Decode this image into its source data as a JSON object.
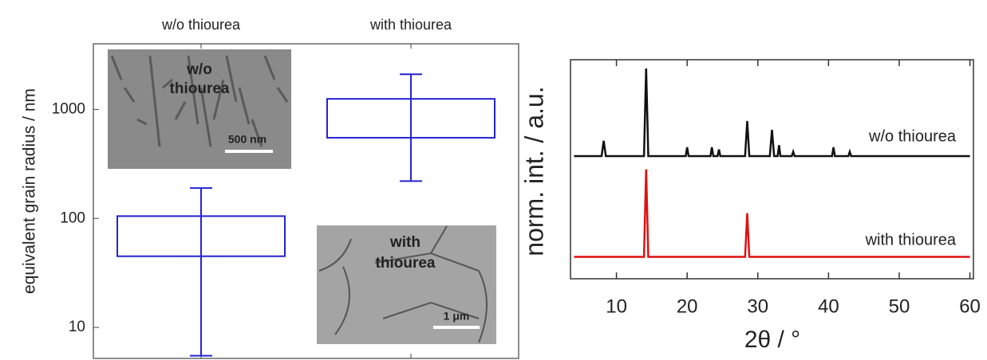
{
  "chart_data": [
    {
      "type": "box",
      "ylabel": "equivalent grain radius / nm",
      "log_scale": true,
      "categories": [
        "w/o thiourea",
        "with thiourea"
      ],
      "ylim": [
        5.2,
        4000
      ],
      "yticks": [
        10,
        100,
        1000
      ],
      "color": "#2424d0",
      "boxes": [
        {
          "q1": 45,
          "q3": 105,
          "whislo": 5.5,
          "whishi": 190
        },
        {
          "q1": 550,
          "q3": 1250,
          "whislo": 220,
          "whishi": 2100
        }
      ],
      "annotations": [
        {
          "label": [
            "w/o",
            "thiourea"
          ],
          "scale_bar": "500 nm"
        },
        {
          "label": [
            "with",
            "thiourea"
          ],
          "scale_bar": "1 μm"
        }
      ]
    },
    {
      "type": "line",
      "xlabel": "2θ / °",
      "ylabel": "norm. int. / a.u.",
      "xlim": [
        3.5,
        60.5
      ],
      "xticks": [
        10,
        20,
        30,
        40,
        50,
        60
      ],
      "ylim": [
        0,
        10
      ],
      "series": [
        {
          "name": "w/o thiourea",
          "color": "#111111",
          "x": [
            4,
            7.9,
            8.2,
            8.5,
            13.9,
            14.2,
            14.5,
            19.8,
            20,
            20.2,
            23.3,
            23.5,
            23.7,
            24.3,
            24.5,
            24.7,
            28.2,
            28.5,
            28.8,
            31.7,
            32,
            32.3,
            32.8,
            33,
            33.2,
            34.8,
            35,
            35.2,
            40.5,
            40.7,
            40.9,
            42.8,
            43,
            43.2,
            60
          ],
          "values": [
            5.6,
            5.6,
            6.3,
            5.6,
            5.6,
            9.6,
            5.6,
            5.6,
            6.0,
            5.6,
            5.6,
            6.0,
            5.6,
            5.6,
            5.9,
            5.6,
            5.6,
            7.2,
            5.6,
            5.6,
            6.8,
            5.6,
            5.6,
            6.1,
            5.6,
            5.6,
            5.8,
            5.6,
            5.6,
            6.0,
            5.6,
            5.6,
            5.8,
            5.6,
            5.6
          ]
        },
        {
          "name": "with thiourea",
          "color": "#e01010",
          "x": [
            4,
            13.9,
            14.2,
            14.5,
            28.2,
            28.5,
            28.8,
            60
          ],
          "values": [
            1.0,
            1.0,
            5.0,
            1.0,
            1.0,
            3.0,
            1.0,
            1.0
          ]
        }
      ]
    }
  ]
}
